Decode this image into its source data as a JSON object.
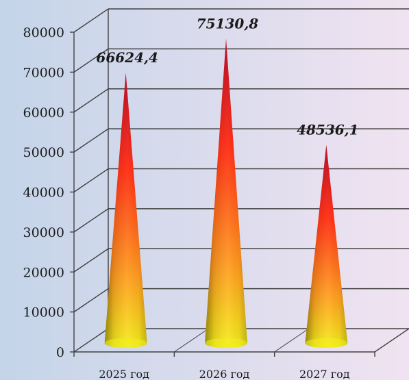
{
  "chart_data": {
    "type": "bar",
    "bar_shape": "cone",
    "categories": [
      "2025 год",
      "2026 год",
      "2027 год"
    ],
    "values": [
      66624.4,
      75130.8,
      48536.1
    ],
    "data_labels": [
      "66624,4",
      "75130,8",
      "48536,1"
    ],
    "title": "",
    "xlabel": "",
    "ylabel": "",
    "ylim": [
      0,
      80000
    ],
    "yticks": [
      "0",
      "10000",
      "20000",
      "30000",
      "40000",
      "50000",
      "60000",
      "70000",
      "80000"
    ],
    "grid": true,
    "legend": "none",
    "colors": {
      "background_left": "#c4d4e9",
      "background_right": "#f0e3f1",
      "cone_top": "#b3001b",
      "cone_mid": "#ff2a10",
      "cone_low": "#ffa020",
      "cone_base": "#f4ee1c"
    }
  }
}
